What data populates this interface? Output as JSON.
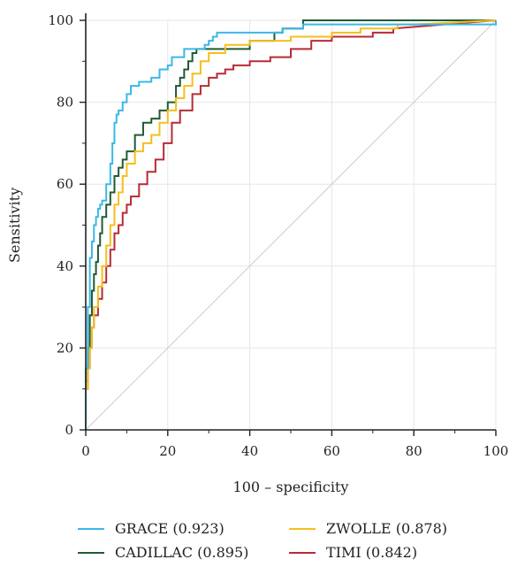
{
  "chart_data": {
    "type": "line",
    "title": "",
    "xlabel": "100 – specificity",
    "ylabel": "Sensitivity",
    "xlim": [
      0,
      100
    ],
    "ylim": [
      0,
      100
    ],
    "xticks": [
      "0",
      "20",
      "40",
      "60",
      "80",
      "100"
    ],
    "yticks": [
      "0",
      "20",
      "40",
      "60",
      "80",
      "100"
    ],
    "grid": true,
    "legend_placement": "bottom",
    "reference_line": {
      "from": [
        0,
        0
      ],
      "to": [
        100,
        100
      ],
      "color": "#cccccc"
    },
    "series": [
      {
        "name": "GRACE (0.923)",
        "color": "#3bb8e6",
        "x": [
          0,
          0,
          0.5,
          0.5,
          1,
          1,
          1.5,
          1.5,
          2,
          2,
          2.5,
          2.5,
          3,
          3,
          3.5,
          3.5,
          4,
          4,
          5,
          5,
          6,
          6,
          6.5,
          6.5,
          7,
          7,
          7.5,
          7.5,
          8,
          8,
          9,
          9,
          10,
          10,
          11,
          11,
          13,
          13,
          16,
          16,
          18,
          18,
          20,
          20,
          21,
          21,
          24,
          24,
          27,
          27,
          29,
          29,
          30,
          30,
          31,
          31,
          32,
          32,
          35,
          35,
          48,
          48,
          53,
          53,
          60,
          60,
          100,
          100
        ],
        "y": [
          0,
          15,
          15,
          30,
          30,
          42,
          42,
          46,
          46,
          50,
          50,
          52,
          52,
          54,
          54,
          55,
          55,
          56,
          56,
          60,
          60,
          65,
          65,
          70,
          70,
          75,
          75,
          77,
          77,
          78,
          78,
          80,
          80,
          82,
          82,
          84,
          84,
          85,
          85,
          86,
          86,
          88,
          88,
          89,
          89,
          91,
          91,
          93,
          93,
          93,
          93,
          94,
          94,
          95,
          95,
          96,
          96,
          97,
          97,
          97,
          97,
          98,
          98,
          99,
          99,
          99,
          99,
          100
        ]
      },
      {
        "name": "ZWOLLE (0.878)",
        "color": "#f5bf1c",
        "x": [
          0,
          0,
          0.5,
          0.5,
          1,
          1,
          1.5,
          1.5,
          2,
          2,
          3,
          3,
          4,
          4,
          5,
          5,
          6,
          6,
          7,
          7,
          8,
          8,
          9,
          9,
          10,
          10,
          12,
          12,
          14,
          14,
          16,
          16,
          18,
          18,
          20,
          20,
          22,
          22,
          24,
          24,
          26,
          26,
          28,
          28,
          30,
          30,
          34,
          34,
          40,
          40,
          50,
          50,
          60,
          60,
          67,
          67,
          76,
          76,
          80,
          80,
          100
        ],
        "y": [
          0,
          10,
          10,
          15,
          15,
          20,
          20,
          25,
          25,
          30,
          30,
          35,
          35,
          40,
          40,
          45,
          45,
          50,
          50,
          55,
          55,
          58,
          58,
          62,
          62,
          65,
          65,
          68,
          68,
          70,
          70,
          72,
          72,
          75,
          75,
          78,
          78,
          81,
          81,
          84,
          84,
          87,
          87,
          90,
          90,
          92,
          92,
          94,
          94,
          95,
          95,
          96,
          96,
          97,
          97,
          98,
          98,
          99,
          99,
          99,
          100
        ]
      },
      {
        "name": "CADILLAC (0.895)",
        "color": "#1f5b34",
        "x": [
          0,
          0,
          0.5,
          0.5,
          1,
          1,
          1.5,
          1.5,
          2,
          2,
          2.5,
          2.5,
          3,
          3,
          3.5,
          3.5,
          4,
          4,
          5,
          5,
          6,
          6,
          7,
          7,
          8,
          8,
          9,
          9,
          10,
          10,
          12,
          12,
          14,
          14,
          16,
          16,
          18,
          18,
          20,
          20,
          22,
          22,
          23,
          23,
          24,
          24,
          25,
          25,
          26,
          26,
          27,
          27,
          30,
          30,
          40,
          40,
          46,
          46,
          48,
          48,
          53,
          53,
          100
        ],
        "y": [
          0,
          12,
          12,
          20,
          20,
          28,
          28,
          34,
          34,
          38,
          38,
          41,
          41,
          45,
          45,
          48,
          48,
          52,
          52,
          55,
          55,
          58,
          58,
          62,
          62,
          64,
          64,
          66,
          66,
          68,
          68,
          72,
          72,
          75,
          75,
          76,
          76,
          78,
          78,
          80,
          80,
          84,
          84,
          86,
          86,
          88,
          88,
          90,
          90,
          92,
          92,
          93,
          93,
          93,
          93,
          95,
          95,
          97,
          97,
          98,
          98,
          100,
          100
        ]
      },
      {
        "name": "TIMI (0.842)",
        "color": "#b82a35",
        "x": [
          0,
          0,
          0.5,
          0.5,
          1,
          1,
          1.5,
          1.5,
          2,
          2,
          3,
          3,
          4,
          4,
          5,
          5,
          6,
          6,
          7,
          7,
          8,
          8,
          9,
          9,
          10,
          10,
          11,
          11,
          13,
          13,
          15,
          15,
          17,
          17,
          19,
          19,
          21,
          21,
          23,
          23,
          26,
          26,
          28,
          28,
          30,
          30,
          32,
          32,
          34,
          34,
          36,
          36,
          40,
          40,
          45,
          45,
          50,
          50,
          55,
          55,
          60,
          60,
          70,
          70,
          75,
          75,
          100
        ],
        "y": [
          0,
          10,
          10,
          15,
          15,
          20,
          20,
          25,
          25,
          28,
          28,
          32,
          32,
          36,
          36,
          40,
          40,
          44,
          44,
          48,
          48,
          50,
          50,
          53,
          53,
          55,
          55,
          57,
          57,
          60,
          60,
          63,
          63,
          66,
          66,
          70,
          70,
          75,
          75,
          78,
          78,
          82,
          82,
          84,
          84,
          86,
          86,
          87,
          87,
          88,
          88,
          89,
          89,
          90,
          90,
          91,
          91,
          93,
          93,
          95,
          95,
          96,
          96,
          97,
          97,
          98,
          100
        ]
      }
    ]
  }
}
